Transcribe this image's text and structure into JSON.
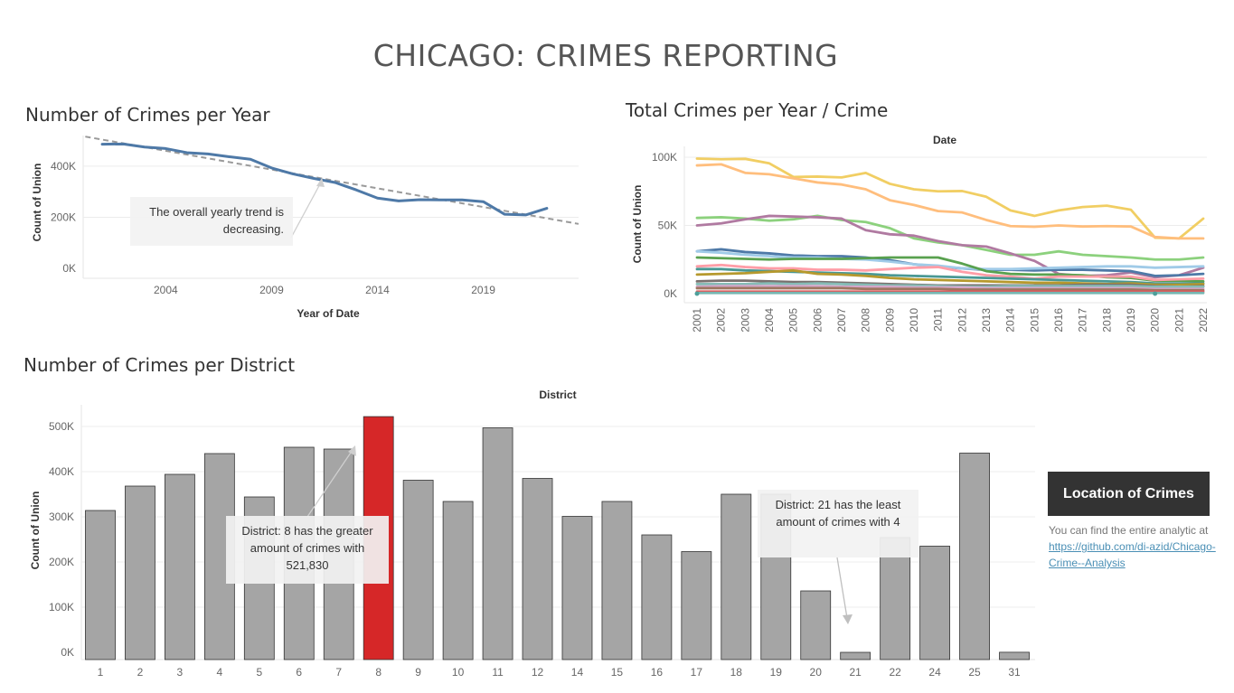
{
  "dashboard": {
    "title": "CHICAGO: CRIMES REPORTING"
  },
  "sheets": {
    "year_title": "Number of Crimes per Year",
    "crime_title": "Total Crimes per Year / Crime",
    "district_title": "Number of Crimes per District"
  },
  "annotations": {
    "year_note": "The overall yearly trend is decreasing.",
    "district_max_note": "District: 8 has the greater amount of crimes with 521,830",
    "district_min_note": "District: 21 has the least amount of crimes with 4"
  },
  "sidebar": {
    "button_label": "Location of Crimes",
    "info_text": "You can find the entire analytic at",
    "link_text": "https://github.com/di-azid/Chicago-Crime--Analysis"
  },
  "colors": {
    "year_line": "#4e79a7",
    "trend_line": "#9a9a9a",
    "bar_default": "#a5a5a5",
    "bar_highlight": "#d62728"
  },
  "chart_data": [
    {
      "type": "line",
      "title": "Number of Crimes per Year",
      "xlabel": "Year of Date",
      "ylabel": "Count of Union",
      "x_ticks": [
        2004,
        2009,
        2014,
        2019
      ],
      "y_ticks": [
        "0K",
        "200K",
        "400K"
      ],
      "ylim": [
        0,
        520000
      ],
      "grid": true,
      "trend_line": true,
      "x": [
        2001,
        2002,
        2003,
        2004,
        2005,
        2006,
        2007,
        2008,
        2009,
        2010,
        2011,
        2012,
        2013,
        2014,
        2015,
        2016,
        2017,
        2018,
        2019,
        2020,
        2021,
        2022
      ],
      "series": [
        {
          "values": [
            486000,
            487000,
            475000,
            469000,
            453000,
            448000,
            437000,
            427000,
            393000,
            370000,
            352000,
            336000,
            307000,
            275000,
            264000,
            269000,
            268000,
            268000,
            261000,
            212000,
            209000,
            235000
          ]
        }
      ]
    },
    {
      "type": "line",
      "title": "Total Crimes per Year / Crime",
      "xlabel": "Date",
      "ylabel": "Count of Union",
      "y_ticks": [
        "0K",
        "50K",
        "100K"
      ],
      "ylim": [
        0,
        100000
      ],
      "grid": true,
      "x": [
        2001,
        2002,
        2003,
        2004,
        2005,
        2006,
        2007,
        2008,
        2009,
        2010,
        2011,
        2012,
        2013,
        2014,
        2015,
        2016,
        2017,
        2018,
        2019,
        2020,
        2021,
        2022
      ],
      "series": [
        {
          "color": "#f1ce63",
          "values": [
            99000,
            98500,
            98800,
            95500,
            85500,
            85800,
            85200,
            88500,
            80500,
            76500,
            75000,
            75200,
            71000,
            61000,
            57000,
            61000,
            63500,
            64500,
            61500,
            41000,
            40500,
            55000
          ]
        },
        {
          "color": "#ffbe7d",
          "values": [
            94000,
            94800,
            88500,
            87500,
            84500,
            81500,
            80000,
            76500,
            68500,
            65000,
            60500,
            59500,
            54000,
            49500,
            49000,
            50000,
            49200,
            49500,
            49200,
            41500,
            40500,
            40500
          ]
        },
        {
          "color": "#8cd17d",
          "values": [
            55500,
            56000,
            55000,
            53500,
            54500,
            57000,
            54000,
            52500,
            48000,
            40500,
            37500,
            35500,
            32000,
            28500,
            28500,
            31000,
            28500,
            27500,
            26500,
            25000,
            25000,
            26500
          ]
        },
        {
          "color": "#b07aa1",
          "values": [
            50000,
            51500,
            54500,
            57000,
            56500,
            56000,
            55000,
            46500,
            43500,
            42500,
            38500,
            35500,
            34500,
            29500,
            24000,
            14500,
            13000,
            13500,
            15500,
            12000,
            13500,
            19000
          ]
        },
        {
          "color": "#4e79a7",
          "values": [
            31000,
            32500,
            30500,
            29500,
            28000,
            27500,
            27500,
            26500,
            24500,
            21500,
            20000,
            18500,
            17500,
            17500,
            17000,
            17500,
            17500,
            17000,
            16500,
            13000,
            13500,
            14500
          ]
        },
        {
          "color": "#a0cbe8",
          "values": [
            31000,
            30000,
            28500,
            27500,
            26500,
            26500,
            25500,
            25000,
            23500,
            21500,
            20500,
            18500,
            18000,
            18000,
            18500,
            19000,
            19500,
            20000,
            20000,
            19000,
            19500,
            20000
          ]
        },
        {
          "color": "#59a14f",
          "values": [
            26500,
            26000,
            25500,
            25000,
            25500,
            25500,
            25500,
            26000,
            26500,
            26500,
            26500,
            22000,
            16500,
            14500,
            14000,
            14000,
            13500,
            12000,
            11500,
            9500,
            9500,
            9000
          ]
        },
        {
          "color": "#ff9da7",
          "values": [
            20000,
            21000,
            19500,
            18500,
            18500,
            17500,
            17500,
            17000,
            18000,
            19000,
            19500,
            16000,
            13500,
            12500,
            11000,
            12500,
            12500,
            12500,
            12500,
            10000,
            10500,
            11000
          ]
        },
        {
          "color": "#499894",
          "values": [
            18000,
            18000,
            17000,
            16500,
            16000,
            15500,
            15000,
            14500,
            13500,
            13000,
            12500,
            12000,
            11500,
            11000,
            10500,
            10000,
            9500,
            9000,
            8500,
            7500,
            7500,
            7500
          ]
        },
        {
          "color": "#b6992d",
          "values": [
            14000,
            14500,
            15000,
            16000,
            17000,
            14500,
            14000,
            13000,
            11500,
            10500,
            10000,
            9500,
            9000,
            8500,
            8000,
            8000,
            7500,
            7000,
            7500,
            6500,
            6500,
            7000
          ]
        },
        {
          "color": "#79706e",
          "values": [
            9000,
            9500,
            9500,
            9000,
            8500,
            8500,
            8000,
            7500,
            7000,
            6500,
            6000,
            6000,
            6000,
            6000,
            6000,
            6000,
            6500,
            6500,
            6500,
            5500,
            5000,
            5500
          ]
        },
        {
          "color": "#86bcb6",
          "values": [
            7000,
            7000,
            7000,
            7500,
            7000,
            7500,
            7000,
            6500,
            6000,
            6000,
            5500,
            5000,
            5000,
            5500,
            5500,
            5500,
            5500,
            5500,
            5500,
            5000,
            5000,
            5000
          ]
        },
        {
          "color": "#d4a6c8",
          "values": [
            5000,
            5500,
            5500,
            5500,
            5500,
            5500,
            5000,
            5000,
            5000,
            4500,
            4500,
            4500,
            4000,
            4000,
            4000,
            4000,
            4000,
            4000,
            4000,
            3500,
            3500,
            3500
          ]
        },
        {
          "color": "#9d7660",
          "values": [
            4000,
            4000,
            4000,
            4000,
            4000,
            4000,
            4000,
            3500,
            3500,
            3500,
            3500,
            3000,
            3000,
            3000,
            3000,
            3000,
            3000,
            3000,
            3000,
            2500,
            2500,
            2500
          ]
        },
        {
          "color": "#e15759",
          "values": [
            1500,
            1500,
            1500,
            1500,
            1500,
            1500,
            1500,
            1500,
            1500,
            1500,
            1500,
            1500,
            1500,
            1500,
            1500,
            1500,
            1500,
            1500,
            1500,
            1500,
            1500,
            1500
          ]
        },
        {
          "color": "#76b7b2",
          "values": [
            500,
            500,
            500,
            500,
            500,
            500,
            500,
            500,
            500,
            500,
            500,
            500,
            500,
            500,
            500,
            500,
            500,
            500,
            500,
            500,
            500,
            500
          ]
        }
      ]
    },
    {
      "type": "bar",
      "title": "Number of Crimes per District",
      "xlabel": "District",
      "ylabel": "Count of Union",
      "y_ticks": [
        "0K",
        "100K",
        "200K",
        "300K",
        "400K",
        "500K"
      ],
      "ylim": [
        0,
        540000
      ],
      "grid": true,
      "categories": [
        "1",
        "2",
        "3",
        "4",
        "5",
        "6",
        "7",
        "8",
        "9",
        "10",
        "11",
        "12",
        "14",
        "15",
        "16",
        "17",
        "18",
        "19",
        "20",
        "21",
        "22",
        "24",
        "25",
        "31"
      ],
      "values": [
        314000,
        368000,
        394000,
        440000,
        344000,
        454000,
        450000,
        521830,
        381000,
        334000,
        497000,
        385000,
        301000,
        334000,
        260000,
        223000,
        350000,
        350000,
        136000,
        4,
        254000,
        235000,
        441000,
        200
      ],
      "highlight_category": "8"
    }
  ]
}
